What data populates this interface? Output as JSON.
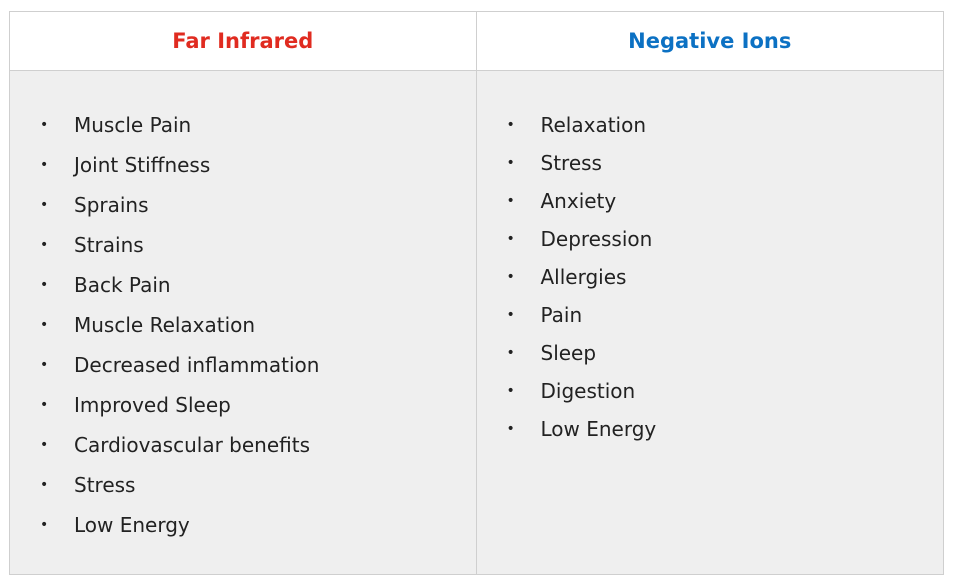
{
  "table": {
    "columns": [
      {
        "title": "Far Infrared",
        "color": "#e02b20",
        "items": [
          "Muscle Pain",
          "Joint Stiffness",
          "Sprains",
          "Strains",
          "Back Pain",
          "Muscle Relaxation",
          "Decreased inflammation",
          "Improved Sleep",
          "Cardiovascular benefits",
          "Stress",
          "Low Energy"
        ]
      },
      {
        "title": "Negative Ions",
        "color": "#0c71c3",
        "items": [
          "Relaxation",
          "Stress",
          "Anxiety",
          "Depression",
          "Allergies",
          "Pain",
          "Sleep",
          "Digestion",
          "Low Energy"
        ]
      }
    ],
    "bullet_glyph": "•",
    "border_color": "#cfcfcf",
    "body_background": "#efefef"
  }
}
